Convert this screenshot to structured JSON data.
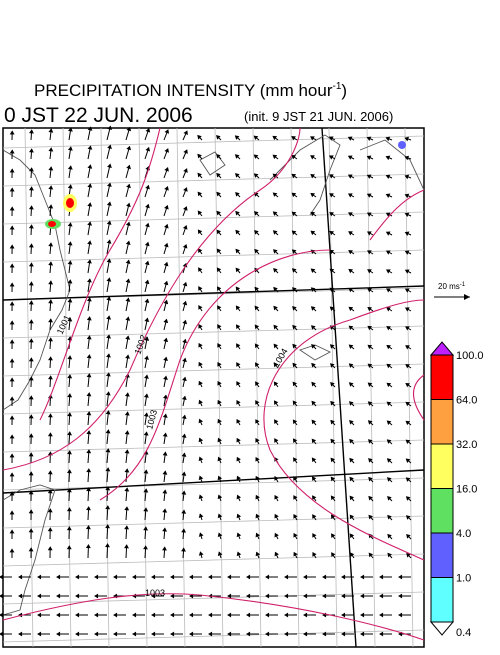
{
  "header": {
    "title": "PRECIPITATION INTENSITY (mm hour",
    "title_unit_exp": "-1",
    "title_close": ")",
    "valid_time": "0 JST 22 JUN. 2006",
    "init_time": "(init. 9 JST 21 JUN. 2006)"
  },
  "vector_scale": {
    "label": "20 ms",
    "label_exp": "-1"
  },
  "contour_labels": [
    "1001",
    "1002",
    "1003",
    "1004",
    "1003"
  ],
  "colorbar": {
    "labels": [
      "100.0",
      "64.0",
      "32.0",
      "16.0",
      "4.0",
      "1.0",
      "0.4"
    ],
    "colors": [
      "#ff0000",
      "#ffa040",
      "#ffff60",
      "#60e060",
      "#6060ff",
      "#60ffff"
    ],
    "over_color": "#c020ff",
    "under_color": "#ffffff"
  }
}
